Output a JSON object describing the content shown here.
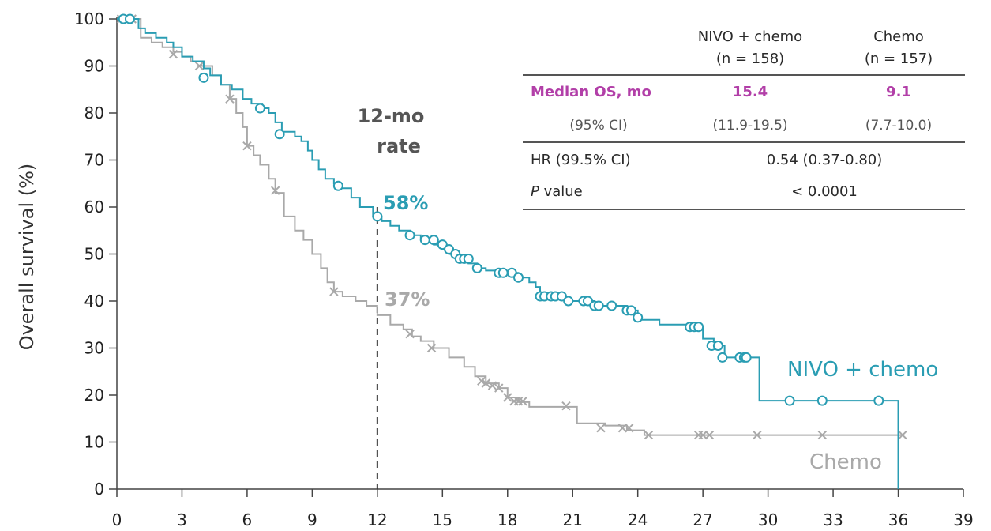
{
  "chart_data": {
    "type": "line",
    "subtype": "kaplan-meier",
    "xlabel": "",
    "ylabel": "Overall survival (%)",
    "xlim": [
      0,
      39
    ],
    "ylim": [
      0,
      100
    ],
    "x_ticks": [
      0,
      3,
      6,
      9,
      12,
      15,
      18,
      21,
      24,
      27,
      30,
      33,
      36,
      39
    ],
    "y_ticks": [
      0,
      10,
      20,
      30,
      40,
      50,
      60,
      70,
      80,
      90,
      100
    ],
    "grid": false,
    "reference_line": {
      "x": 12,
      "label_title": [
        "12-mo",
        "rate"
      ]
    },
    "series": [
      {
        "name": "NIVO + chemo",
        "color": "#2a9db3",
        "censor_marker": "circle",
        "rate_at_12": "58%",
        "points": [
          [
            0,
            100
          ],
          [
            0.8,
            100
          ],
          [
            1.0,
            98
          ],
          [
            1.3,
            97
          ],
          [
            1.8,
            96
          ],
          [
            2.3,
            95
          ],
          [
            2.6,
            94
          ],
          [
            3.0,
            92
          ],
          [
            3.5,
            91
          ],
          [
            4.0,
            89.5
          ],
          [
            4.3,
            88
          ],
          [
            4.8,
            86
          ],
          [
            5.3,
            85
          ],
          [
            5.8,
            83
          ],
          [
            6.2,
            82
          ],
          [
            6.7,
            81
          ],
          [
            7.0,
            80
          ],
          [
            7.3,
            78
          ],
          [
            7.6,
            76
          ],
          [
            8.2,
            75
          ],
          [
            8.5,
            74
          ],
          [
            8.8,
            72
          ],
          [
            9.0,
            70
          ],
          [
            9.3,
            68
          ],
          [
            9.6,
            66
          ],
          [
            10.0,
            65
          ],
          [
            10.4,
            64
          ],
          [
            10.8,
            62
          ],
          [
            11.2,
            60
          ],
          [
            11.8,
            58
          ],
          [
            12.2,
            57
          ],
          [
            12.6,
            56
          ],
          [
            13.0,
            55
          ],
          [
            13.5,
            54
          ],
          [
            14.0,
            53
          ],
          [
            14.6,
            52
          ],
          [
            15.0,
            51
          ],
          [
            15.3,
            50
          ],
          [
            15.6,
            49
          ],
          [
            16.2,
            48
          ],
          [
            16.6,
            47
          ],
          [
            17.0,
            46.5
          ],
          [
            17.5,
            46
          ],
          [
            18.5,
            45
          ],
          [
            19.0,
            44
          ],
          [
            19.3,
            43
          ],
          [
            19.5,
            41
          ],
          [
            20.5,
            41
          ],
          [
            20.8,
            40
          ],
          [
            21.5,
            40
          ],
          [
            22.0,
            39
          ],
          [
            23.5,
            38
          ],
          [
            24.0,
            36
          ],
          [
            24.5,
            36
          ],
          [
            25.0,
            35
          ],
          [
            26.5,
            34.5
          ],
          [
            27.0,
            32
          ],
          [
            27.5,
            30.5
          ],
          [
            28.0,
            28
          ],
          [
            29.0,
            28
          ],
          [
            29.6,
            18.8
          ],
          [
            36.0,
            18.8
          ],
          [
            36.0,
            0
          ]
        ],
        "censors": [
          [
            0.3,
            100
          ],
          [
            0.6,
            100
          ],
          [
            4.0,
            87.5
          ],
          [
            6.6,
            81
          ],
          [
            7.5,
            75.5
          ],
          [
            10.2,
            64.5
          ],
          [
            12.0,
            58
          ],
          [
            13.5,
            54
          ],
          [
            14.2,
            53
          ],
          [
            14.6,
            53
          ],
          [
            15.0,
            52
          ],
          [
            15.3,
            51
          ],
          [
            15.6,
            50
          ],
          [
            15.8,
            49
          ],
          [
            16.0,
            49
          ],
          [
            16.2,
            49
          ],
          [
            16.6,
            47
          ],
          [
            17.6,
            46
          ],
          [
            17.8,
            46
          ],
          [
            18.2,
            46
          ],
          [
            18.5,
            45
          ],
          [
            19.5,
            41
          ],
          [
            19.7,
            41
          ],
          [
            20.0,
            41
          ],
          [
            20.2,
            41
          ],
          [
            20.5,
            41
          ],
          [
            20.8,
            40
          ],
          [
            21.5,
            40
          ],
          [
            21.7,
            40
          ],
          [
            22.0,
            39
          ],
          [
            22.2,
            39
          ],
          [
            22.8,
            39
          ],
          [
            23.5,
            38
          ],
          [
            23.7,
            38
          ],
          [
            24.0,
            36.5
          ],
          [
            26.4,
            34.5
          ],
          [
            26.6,
            34.5
          ],
          [
            26.8,
            34.5
          ],
          [
            27.4,
            30.5
          ],
          [
            27.7,
            30.5
          ],
          [
            27.9,
            28
          ],
          [
            28.7,
            28
          ],
          [
            28.9,
            28
          ],
          [
            29.0,
            28
          ],
          [
            31.0,
            18.8
          ],
          [
            32.5,
            18.8
          ],
          [
            35.1,
            18.8
          ]
        ]
      },
      {
        "name": "Chemo",
        "color": "#a9a9a9",
        "censor_marker": "cross",
        "rate_at_12": "37%",
        "points": [
          [
            0,
            100
          ],
          [
            0.8,
            100
          ],
          [
            1.1,
            96
          ],
          [
            1.6,
            95
          ],
          [
            2.1,
            94
          ],
          [
            2.6,
            93
          ],
          [
            3.0,
            92
          ],
          [
            3.4,
            91
          ],
          [
            3.9,
            90
          ],
          [
            4.4,
            88
          ],
          [
            4.8,
            86
          ],
          [
            5.2,
            83
          ],
          [
            5.5,
            80
          ],
          [
            5.8,
            77
          ],
          [
            6.0,
            73
          ],
          [
            6.3,
            71
          ],
          [
            6.6,
            69
          ],
          [
            7.0,
            66
          ],
          [
            7.3,
            63
          ],
          [
            7.7,
            58
          ],
          [
            8.2,
            55
          ],
          [
            8.6,
            53
          ],
          [
            9.0,
            50
          ],
          [
            9.4,
            47
          ],
          [
            9.7,
            44
          ],
          [
            10.0,
            42
          ],
          [
            10.4,
            41
          ],
          [
            11.0,
            40
          ],
          [
            11.5,
            39
          ],
          [
            12.0,
            37
          ],
          [
            12.6,
            35
          ],
          [
            13.2,
            34
          ],
          [
            13.6,
            32.5
          ],
          [
            14.0,
            31.5
          ],
          [
            14.6,
            30
          ],
          [
            15.3,
            28
          ],
          [
            16.0,
            26
          ],
          [
            16.5,
            24
          ],
          [
            17.0,
            22.5
          ],
          [
            17.6,
            21.5
          ],
          [
            18.0,
            19.5
          ],
          [
            18.5,
            18.5
          ],
          [
            19.0,
            17.5
          ],
          [
            20.7,
            17.5
          ],
          [
            21.2,
            14
          ],
          [
            22.5,
            13.5
          ],
          [
            23.5,
            12.5
          ],
          [
            24.3,
            11.5
          ],
          [
            36.2,
            11.5
          ]
        ],
        "censors": [
          [
            0.2,
            100
          ],
          [
            0.5,
            100
          ],
          [
            0.7,
            100
          ],
          [
            2.6,
            92.5
          ],
          [
            3.8,
            90
          ],
          [
            5.2,
            83
          ],
          [
            6.0,
            73
          ],
          [
            7.3,
            63.5
          ],
          [
            10.0,
            42
          ],
          [
            13.5,
            33
          ],
          [
            14.5,
            30
          ],
          [
            16.8,
            23
          ],
          [
            17.0,
            22.5
          ],
          [
            17.3,
            22
          ],
          [
            17.6,
            21.5
          ],
          [
            18.0,
            19.5
          ],
          [
            18.3,
            18.7
          ],
          [
            18.5,
            18.7
          ],
          [
            18.7,
            18.7
          ],
          [
            20.7,
            17.7
          ],
          [
            22.3,
            13
          ],
          [
            23.3,
            13
          ],
          [
            23.6,
            13
          ],
          [
            24.5,
            11.5
          ],
          [
            26.8,
            11.5
          ],
          [
            27.0,
            11.5
          ],
          [
            27.3,
            11.5
          ],
          [
            29.5,
            11.5
          ],
          [
            32.5,
            11.5
          ],
          [
            36.2,
            11.5
          ]
        ]
      }
    ],
    "table": {
      "headers": [
        {
          "line1": "NIVO + chemo",
          "line2": "(n = 158)"
        },
        {
          "line1": "Chemo",
          "line2": "(n = 157)"
        }
      ],
      "median_label": "Median OS, mo",
      "median_nivo": "15.4",
      "median_chemo": "9.1",
      "ci_label": "(95% CI)",
      "ci_nivo": "(11.9-19.5)",
      "ci_chemo": "(7.7-10.0)",
      "hr_label": "HR (99.5% CI)",
      "hr_value": "0.54 (0.37-0.80)",
      "p_label_italic": "P",
      "p_label_rest": " value",
      "p_value": "< 0.0001",
      "accent_color": "#b23fa8"
    }
  }
}
